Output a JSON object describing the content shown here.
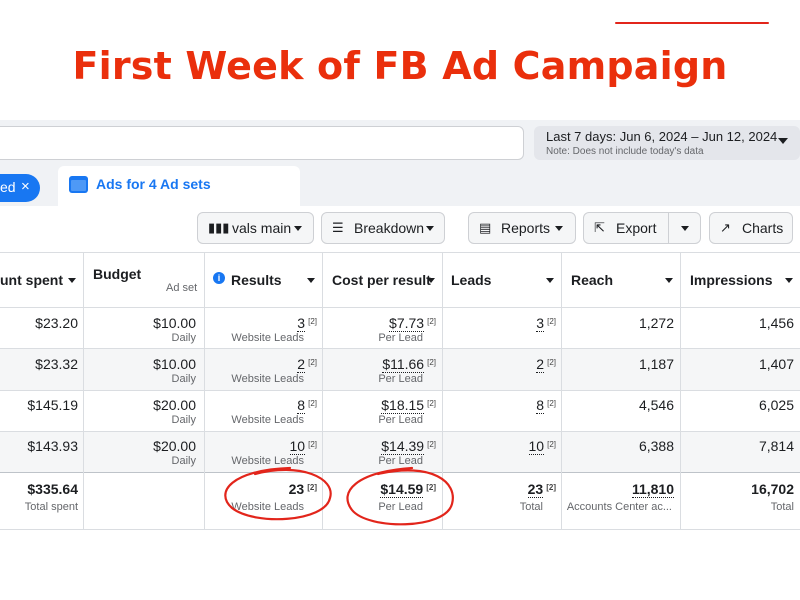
{
  "title": "First Week of FB Ad Campaign",
  "date_range": {
    "label": "Last 7 days: Jun 6, 2024 – Jun 12, 2024",
    "note": "Note: Does not include today's data"
  },
  "tabs": {
    "selected_chip": "ed",
    "selected_chip_close": "×",
    "active": "Ads for 4 Ad sets"
  },
  "toolbar": {
    "columns": "vals main",
    "breakdown": "Breakdown",
    "reports": "Reports",
    "export": "Export",
    "charts": "Charts"
  },
  "columns": {
    "amount_spent": "unt spent",
    "budget": "Budget",
    "budget_sub": "Ad set",
    "results": "Results",
    "cost_per_result": "Cost per result",
    "leads": "Leads",
    "reach": "Reach",
    "impressions": "Impressions"
  },
  "rows": [
    {
      "spent": "$23.20",
      "budget": "$10.00",
      "budget_type": "Daily",
      "results": "3",
      "results_type": "Website Leads",
      "cpr": "$7.73",
      "cpr_type": "Per Lead",
      "leads": "3",
      "reach": "1,272",
      "impressions": "1,456"
    },
    {
      "spent": "$23.32",
      "budget": "$10.00",
      "budget_type": "Daily",
      "results": "2",
      "results_type": "Website Leads",
      "cpr": "$11.66",
      "cpr_type": "Per Lead",
      "leads": "2",
      "reach": "1,187",
      "impressions": "1,407"
    },
    {
      "spent": "$145.19",
      "budget": "$20.00",
      "budget_type": "Daily",
      "results": "8",
      "results_type": "Website Leads",
      "cpr": "$18.15",
      "cpr_type": "Per Lead",
      "leads": "8",
      "reach": "4,546",
      "impressions": "6,025"
    },
    {
      "spent": "$143.93",
      "budget": "$20.00",
      "budget_type": "Daily",
      "results": "10",
      "results_type": "Website Leads",
      "cpr": "$14.39",
      "cpr_type": "Per Lead",
      "leads": "10",
      "reach": "6,388",
      "impressions": "7,814"
    }
  ],
  "ref_marker": "[2]",
  "totals": {
    "spent": "$335.64",
    "spent_sub": "Total spent",
    "results": "23",
    "results_sub": "Website Leads",
    "cpr": "$14.59",
    "cpr_sub": "Per Lead",
    "leads": "23",
    "leads_sub": "Total",
    "reach": "11,810",
    "reach_sub": "Accounts Center ac...",
    "impressions": "16,702",
    "impressions_sub": "Total"
  },
  "colors": {
    "title": "#ea2f0c",
    "annotation": "#e2251b",
    "accent": "#1877f2"
  }
}
